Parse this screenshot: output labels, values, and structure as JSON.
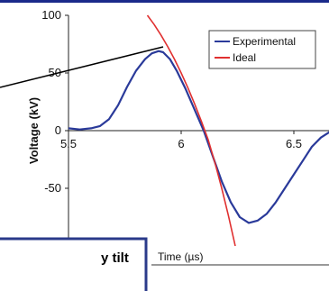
{
  "chart_data": {
    "type": "line",
    "title": "",
    "xlabel": "Time (µs)",
    "ylabel": "Voltage (kV)",
    "xlim": [
      5.5,
      6.7
    ],
    "ylim": [
      -100,
      100
    ],
    "xticks": [
      "5.5",
      "6",
      "6.5"
    ],
    "yticks": [
      "100",
      "50",
      "0",
      "-50",
      "-100"
    ],
    "grid": false,
    "legend": "top-right",
    "series": [
      {
        "name": "Experimental",
        "color": "#2a3a9a",
        "x": [
          5.5,
          5.55,
          5.6,
          5.64,
          5.68,
          5.72,
          5.76,
          5.8,
          5.84,
          5.87,
          5.9,
          5.92,
          5.95,
          5.98,
          6.02,
          6.06,
          6.1,
          6.14,
          6.18,
          6.22,
          6.26,
          6.3,
          6.34,
          6.38,
          6.42,
          6.46,
          6.5,
          6.54,
          6.58,
          6.62,
          6.66,
          6.7
        ],
        "y": [
          2,
          1,
          2,
          4,
          10,
          22,
          38,
          52,
          62,
          67,
          69,
          68,
          62,
          52,
          36,
          18,
          0,
          -22,
          -44,
          -62,
          -75,
          -80,
          -78,
          -72,
          -62,
          -50,
          -38,
          -26,
          -14,
          -6,
          -1,
          2
        ]
      },
      {
        "name": "Ideal",
        "color": "#e03030",
        "x": [
          5.85,
          5.88,
          5.91,
          5.94,
          5.97,
          6.0,
          6.03,
          6.06,
          6.09,
          6.12,
          6.15,
          6.18,
          6.21,
          6.24
        ],
        "y": [
          100,
          92,
          83,
          73,
          62,
          50,
          37,
          23,
          8,
          -8,
          -28,
          -50,
          -74,
          -100
        ]
      }
    ],
    "annotation_text": "y tilt"
  }
}
